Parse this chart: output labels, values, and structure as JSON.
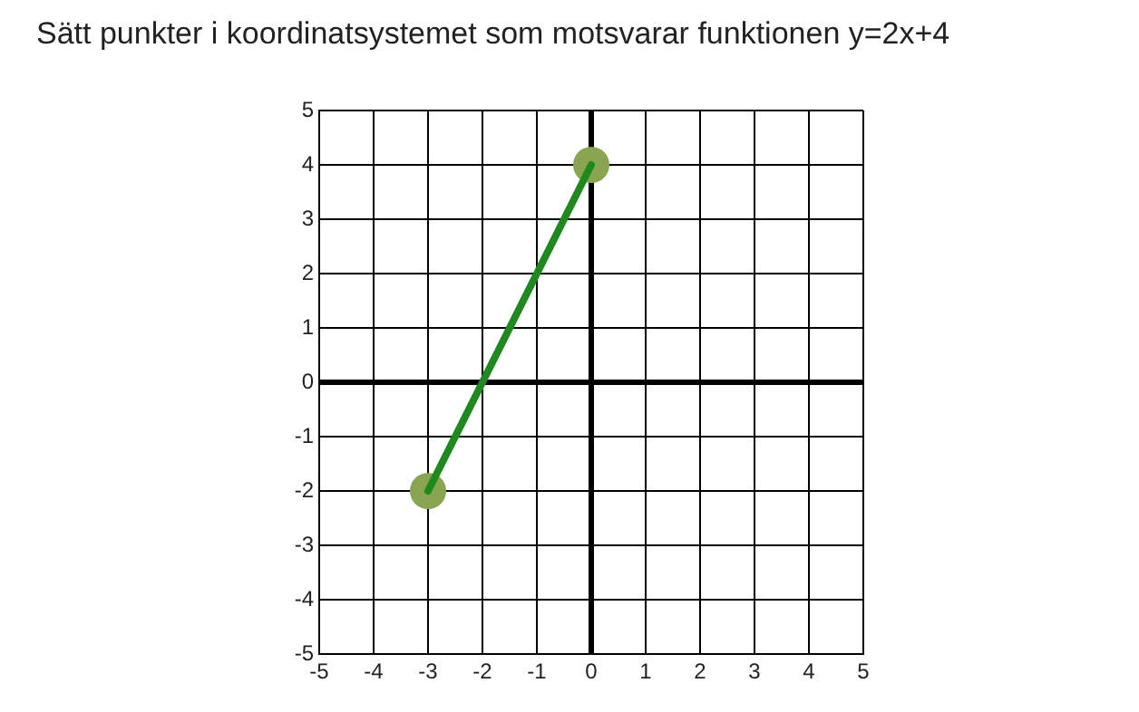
{
  "chart_data": {
    "type": "scatter",
    "title": "Sätt punkter i koordinatsystemet som motsvarar funktionen y=2x+4",
    "x": [
      -3,
      0
    ],
    "series": [
      {
        "type": "line",
        "color": "#1e8a1e",
        "values": [
          -2,
          4
        ],
        "marker": "none"
      },
      {
        "color": "#8aa552",
        "values": [
          -2,
          4
        ],
        "marker": "circle"
      }
    ],
    "xlim": [
      -5,
      5
    ],
    "xticks": [
      -5,
      -4,
      -3,
      -2,
      -1,
      0,
      1,
      2,
      3,
      4,
      5
    ],
    "ylim": [
      -5,
      5
    ],
    "yticks": [
      -5,
      -4,
      -3,
      -2,
      -1,
      0,
      1,
      2,
      3,
      4,
      5
    ],
    "grid": true,
    "legend": false
  }
}
